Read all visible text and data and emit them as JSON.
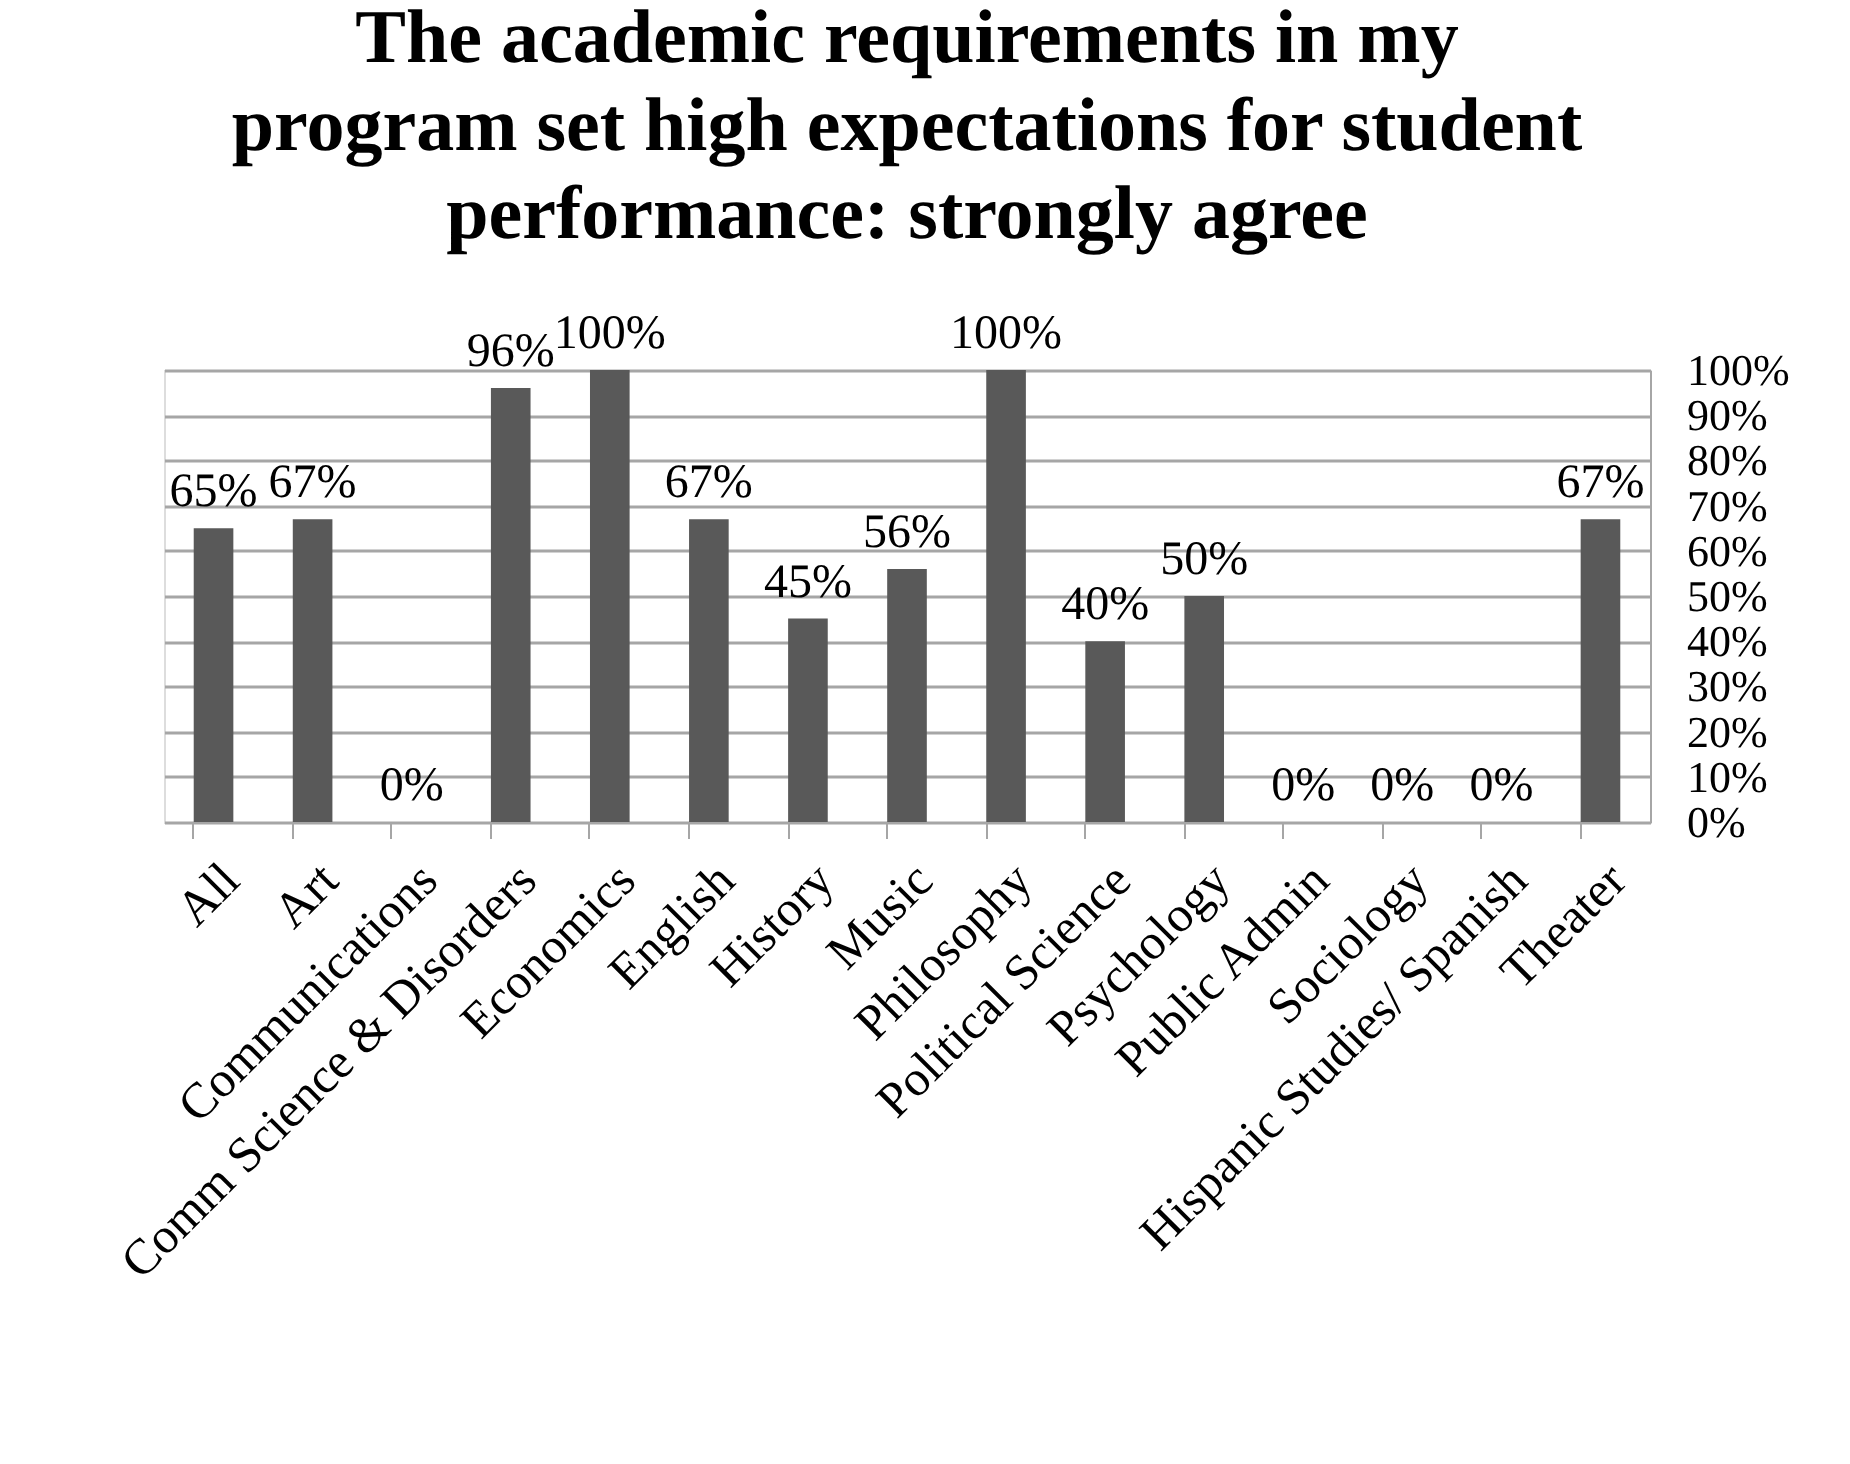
{
  "chart_data": {
    "type": "bar",
    "title": "The academic requirements in my\nprogram set high expectations for student\nperformance: strongly agree",
    "categories": [
      "All",
      "Art",
      "Communications",
      "Comm Science & Disorders",
      "Economics",
      "English",
      "History",
      "Music",
      "Philosophy",
      "Political Science",
      "Psychology",
      "Public Admin",
      "Sociology",
      "Hispanic Studies/ Spanish",
      "Theater"
    ],
    "values": [
      65,
      67,
      0,
      96,
      100,
      67,
      45,
      56,
      100,
      40,
      50,
      0,
      0,
      0,
      67
    ],
    "value_labels": [
      "65%",
      "67%",
      "0%",
      "96%",
      "100%",
      "67%",
      "45%",
      "56%",
      "100%",
      "40%",
      "50%",
      "0%",
      "0%",
      "0%",
      "67%"
    ],
    "color": "#595959",
    "ylim": [
      0,
      100
    ],
    "yticks": [
      {
        "value": 0,
        "label": "0%"
      },
      {
        "value": 10,
        "label": "10%"
      },
      {
        "value": 20,
        "label": "20%"
      },
      {
        "value": 30,
        "label": "30%"
      },
      {
        "value": 40,
        "label": "40%"
      },
      {
        "value": 50,
        "label": "50%"
      },
      {
        "value": 60,
        "label": "60%"
      },
      {
        "value": 70,
        "label": "70%"
      },
      {
        "value": 80,
        "label": "80%"
      },
      {
        "value": 90,
        "label": "90%"
      },
      {
        "value": 100,
        "label": "100%"
      }
    ],
    "grid": "y"
  }
}
